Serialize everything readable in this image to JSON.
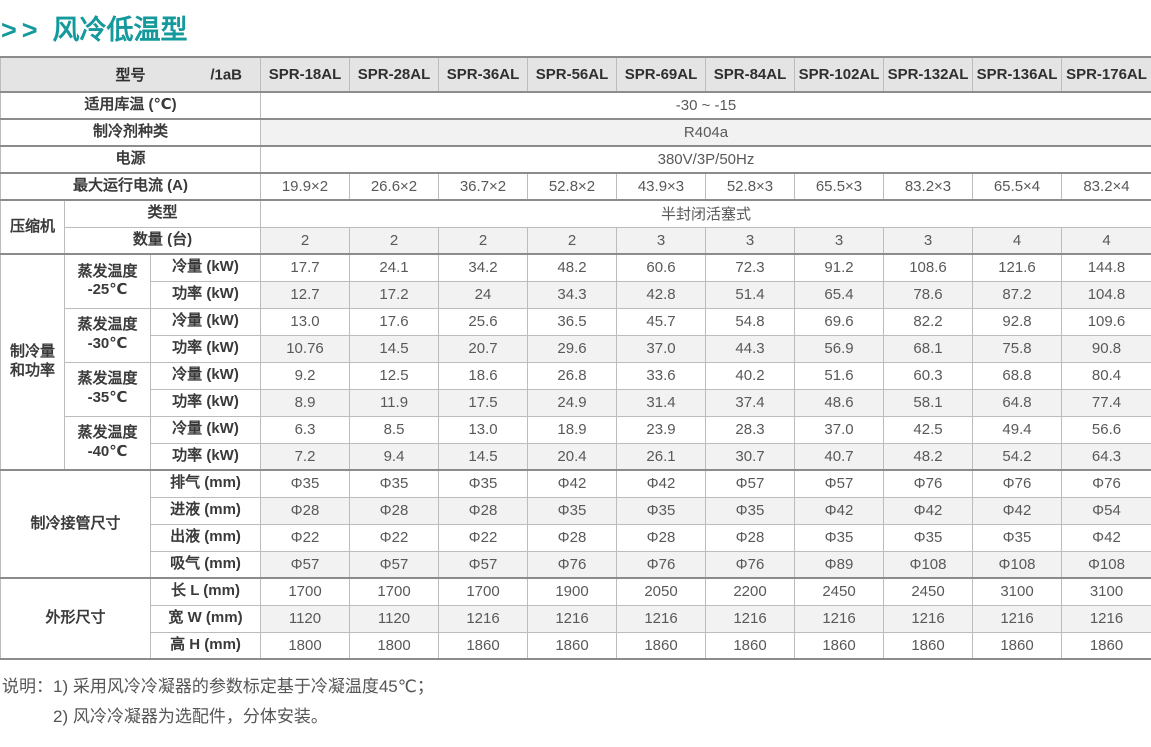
{
  "page": {
    "title_marker": ">>",
    "title": "风冷低温型"
  },
  "colors": {
    "accent": "#14999c",
    "header_bg": "#e4e4e4",
    "stripe": "#f2f2f2",
    "border_light": "#bcbcbc",
    "border_dark": "#8c8c8c"
  },
  "table": {
    "corner": {
      "label": "型号",
      "code": "/1aB"
    },
    "models": [
      "SPR-18AL",
      "SPR-28AL",
      "SPR-36AL",
      "SPR-56AL",
      "SPR-69AL",
      "SPR-84AL",
      "SPR-102AL",
      "SPR-132AL",
      "SPR-136AL",
      "SPR-176AL"
    ],
    "sections": [
      {
        "rows": [
          {
            "label": "适用库温 (℃)",
            "value": "-30 ~ -15"
          },
          {
            "label": "制冷剂种类",
            "value": "R404a",
            "stripe": true
          },
          {
            "label": "电源",
            "value": "380V/3P/50Hz"
          },
          {
            "label": "最大运行电流 (A)",
            "values": [
              "19.9×2",
              "26.6×2",
              "36.7×2",
              "52.8×2",
              "43.9×3",
              "52.8×3",
              "65.5×3",
              "83.2×3",
              "65.5×4",
              "83.2×4"
            ]
          }
        ]
      },
      {
        "group": "压缩机",
        "group_cols": 1,
        "rows": [
          {
            "label": "类型",
            "value": "半封闭活塞式"
          },
          {
            "label": "数量 (台)",
            "values": [
              "2",
              "2",
              "2",
              "2",
              "3",
              "3",
              "3",
              "3",
              "4",
              "4"
            ],
            "stripe": true
          }
        ]
      },
      {
        "group": "制冷量\n和功率",
        "group_cols": 1,
        "subgroups": [
          {
            "label": "蒸发温度\n-25℃",
            "rows": [
              {
                "label": "冷量 (kW)",
                "values": [
                  "17.7",
                  "24.1",
                  "34.2",
                  "48.2",
                  "60.6",
                  "72.3",
                  "91.2",
                  "108.6",
                  "121.6",
                  "144.8"
                ]
              },
              {
                "label": "功率 (kW)",
                "values": [
                  "12.7",
                  "17.2",
                  "24",
                  "34.3",
                  "42.8",
                  "51.4",
                  "65.4",
                  "78.6",
                  "87.2",
                  "104.8"
                ],
                "stripe": true
              }
            ]
          },
          {
            "label": "蒸发温度\n-30℃",
            "rows": [
              {
                "label": "冷量 (kW)",
                "values": [
                  "13.0",
                  "17.6",
                  "25.6",
                  "36.5",
                  "45.7",
                  "54.8",
                  "69.6",
                  "82.2",
                  "92.8",
                  "109.6"
                ]
              },
              {
                "label": "功率 (kW)",
                "values": [
                  "10.76",
                  "14.5",
                  "20.7",
                  "29.6",
                  "37.0",
                  "44.3",
                  "56.9",
                  "68.1",
                  "75.8",
                  "90.8"
                ],
                "stripe": true
              }
            ]
          },
          {
            "label": "蒸发温度\n-35℃",
            "rows": [
              {
                "label": "冷量 (kW)",
                "values": [
                  "9.2",
                  "12.5",
                  "18.6",
                  "26.8",
                  "33.6",
                  "40.2",
                  "51.6",
                  "60.3",
                  "68.8",
                  "80.4"
                ]
              },
              {
                "label": "功率 (kW)",
                "values": [
                  "8.9",
                  "11.9",
                  "17.5",
                  "24.9",
                  "31.4",
                  "37.4",
                  "48.6",
                  "58.1",
                  "64.8",
                  "77.4"
                ],
                "stripe": true
              }
            ]
          },
          {
            "label": "蒸发温度\n-40℃",
            "rows": [
              {
                "label": "冷量 (kW)",
                "values": [
                  "6.3",
                  "8.5",
                  "13.0",
                  "18.9",
                  "23.9",
                  "28.3",
                  "37.0",
                  "42.5",
                  "49.4",
                  "56.6"
                ]
              },
              {
                "label": "功率 (kW)",
                "values": [
                  "7.2",
                  "9.4",
                  "14.5",
                  "20.4",
                  "26.1",
                  "30.7",
                  "40.7",
                  "48.2",
                  "54.2",
                  "64.3"
                ],
                "stripe": true
              }
            ]
          }
        ]
      },
      {
        "group": "制冷接管尺寸",
        "group_cols": 2,
        "rows": [
          {
            "label": "排气 (mm)",
            "values": [
              "Φ35",
              "Φ35",
              "Φ35",
              "Φ42",
              "Φ42",
              "Φ57",
              "Φ57",
              "Φ76",
              "Φ76",
              "Φ76"
            ]
          },
          {
            "label": "进液 (mm)",
            "values": [
              "Φ28",
              "Φ28",
              "Φ28",
              "Φ35",
              "Φ35",
              "Φ35",
              "Φ42",
              "Φ42",
              "Φ42",
              "Φ54"
            ],
            "stripe": true
          },
          {
            "label": "出液 (mm)",
            "values": [
              "Φ22",
              "Φ22",
              "Φ22",
              "Φ28",
              "Φ28",
              "Φ28",
              "Φ35",
              "Φ35",
              "Φ35",
              "Φ42"
            ]
          },
          {
            "label": "吸气 (mm)",
            "values": [
              "Φ57",
              "Φ57",
              "Φ57",
              "Φ76",
              "Φ76",
              "Φ76",
              "Φ89",
              "Φ108",
              "Φ108",
              "Φ108"
            ],
            "stripe": true
          }
        ]
      },
      {
        "group": "外形尺寸",
        "group_cols": 2,
        "rows": [
          {
            "label": "长 L (mm)",
            "values": [
              "1700",
              "1700",
              "1700",
              "1900",
              "2050",
              "2200",
              "2450",
              "2450",
              "3100",
              "3100"
            ]
          },
          {
            "label": "宽 W (mm)",
            "values": [
              "1120",
              "1120",
              "1216",
              "1216",
              "1216",
              "1216",
              "1216",
              "1216",
              "1216",
              "1216"
            ],
            "stripe": true
          },
          {
            "label": "高 H (mm)",
            "values": [
              "1800",
              "1800",
              "1860",
              "1860",
              "1860",
              "1860",
              "1860",
              "1860",
              "1860",
              "1860"
            ]
          }
        ]
      }
    ]
  },
  "notes": {
    "prefix": "说明：",
    "items": [
      "1) 采用风冷冷凝器的参数标定基于冷凝温度45℃；",
      "2) 风冷冷凝器为选配件，分体安装。"
    ]
  }
}
